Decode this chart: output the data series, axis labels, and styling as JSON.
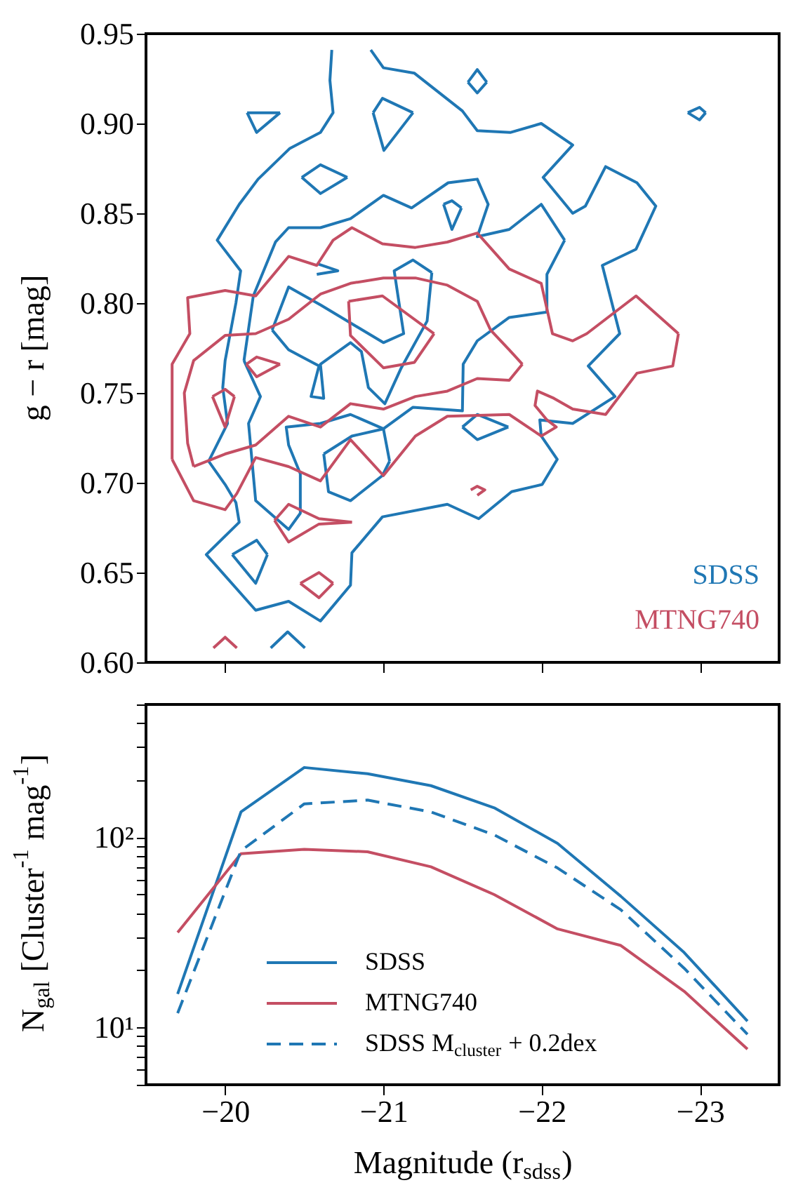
{
  "chart_data": [
    {
      "type": "line",
      "ylabel": "g − r [mag]",
      "xlim": [
        -19.5,
        -23.5
      ],
      "xticks": [
        -20,
        -21,
        -22,
        -23
      ],
      "ylim": [
        0.6,
        0.95
      ],
      "yticks": [
        {
          "value": 0.6,
          "label": "0.60"
        },
        {
          "value": 0.65,
          "label": "0.65"
        },
        {
          "value": 0.7,
          "label": "0.70"
        },
        {
          "value": 0.75,
          "label": "0.75"
        },
        {
          "value": 0.8,
          "label": "0.80"
        },
        {
          "value": 0.85,
          "label": "0.85"
        },
        {
          "value": 0.9,
          "label": "0.90"
        },
        {
          "value": 0.95,
          "label": "0.95"
        }
      ],
      "tick_labels": "y",
      "grid": false,
      "legend": "bottom right",
      "marker": "none",
      "series": [
        {
          "name": "SDSS",
          "color": "#1f77b4",
          "x": [
            -20.674,
            -20.662,
            -20.682,
            -20.602,
            -20.407,
            -20.208,
            -20.089,
            -19.95,
            -20.098,
            -20.068,
            -20.0,
            -19.985,
            -20.015,
            -19.896,
            -20.0,
            -20.068,
            -20.089,
            -19.881,
            -20.193,
            -20.401,
            -20.602,
            -20.792,
            -20.801,
            -20.994,
            -21.404,
            -21.602,
            -21.81,
            -22.003,
            -22.098,
            -21.997,
            -21.988,
            -22.196,
            -22.463,
            -22.294,
            -22.493,
            -22.383,
            -22.596,
            -22.721,
            -22.602,
            -22.404,
            -22.276,
            -22.196,
            -22.009,
            -22.196,
            -21.997,
            -21.801,
            -21.593,
            -21.499,
            -21.196,
            -21.0,
            -20.92
          ],
          "values": [
            0.941,
            0.924,
            0.906,
            0.895,
            0.886,
            0.869,
            0.855,
            0.835,
            0.818,
            0.8,
            0.768,
            0.753,
            0.733,
            0.712,
            0.699,
            0.689,
            0.678,
            0.66,
            0.629,
            0.634,
            0.623,
            0.643,
            0.661,
            0.681,
            0.688,
            0.68,
            0.695,
            0.699,
            0.713,
            0.726,
            0.735,
            0.733,
            0.748,
            0.765,
            0.783,
            0.821,
            0.83,
            0.854,
            0.867,
            0.876,
            0.854,
            0.85,
            0.87,
            0.888,
            0.9,
            0.895,
            0.896,
            0.907,
            0.928,
            0.931,
            0.941
          ]
        },
        {
          "color": "#1f77b4",
          "x": [
            -20.119,
            -20.178,
            -20.318,
            -20.401,
            -20.602,
            -20.792,
            -21.0,
            -21.178,
            -21.409,
            -21.593,
            -21.662,
            -21.593,
            -21.795,
            -21.997,
            -22.145
          ],
          "values": [
            0.768,
            0.804,
            0.834,
            0.842,
            0.842,
            0.847,
            0.86,
            0.853,
            0.867,
            0.869,
            0.855,
            0.837,
            0.841,
            0.855,
            0.835
          ]
        },
        {
          "color": "#1f77b4",
          "x": [
            -22.145,
            -22.033,
            -22.033,
            -21.795,
            -21.593,
            -21.504,
            -21.499,
            -21.187,
            -21.0,
            -20.792,
            -20.602,
            -20.386,
            -20.401,
            -20.475,
            -20.475,
            -20.401,
            -20.193,
            -20.148,
            -20.223,
            -20.119
          ],
          "values": [
            0.835,
            0.816,
            0.795,
            0.792,
            0.779,
            0.766,
            0.74,
            0.742,
            0.73,
            0.738,
            0.733,
            0.731,
            0.721,
            0.705,
            0.683,
            0.674,
            0.69,
            0.733,
            0.748,
            0.768
          ]
        },
        {
          "color": "#1f77b4",
          "x": [
            -20.297,
            -20.401,
            -20.602,
            -20.792,
            -21.0,
            -21.128,
            -21.068,
            -21.187,
            -21.306
          ],
          "values": [
            0.785,
            0.809,
            0.799,
            0.789,
            0.778,
            0.783,
            0.818,
            0.824,
            0.817
          ]
        },
        {
          "color": "#1f77b4",
          "x": [
            -21.306,
            -21.276,
            -21.113,
            -21.009,
            -20.905,
            -20.861,
            -20.792,
            -20.602,
            -20.623,
            -20.543,
            -20.593,
            -20.401,
            -20.297
          ],
          "values": [
            0.817,
            0.79,
            0.764,
            0.744,
            0.753,
            0.773,
            0.778,
            0.766,
            0.747,
            0.748,
            0.765,
            0.774,
            0.785
          ]
        },
        {
          "color": "#1f77b4",
          "x": [
            -20.623,
            -20.801,
            -21.0,
            -21.039
          ],
          "values": [
            0.716,
            0.726,
            0.73,
            0.712
          ]
        },
        {
          "color": "#1f77b4",
          "x": [
            -21.039,
            -20.994,
            -20.792,
            -20.653,
            -20.623
          ],
          "values": [
            0.712,
            0.704,
            0.69,
            0.695,
            0.716
          ]
        },
        {
          "color": "#1f77b4",
          "x": [
            -20.139,
            -20.347
          ],
          "values": [
            0.906,
            0.906
          ]
        },
        {
          "color": "#1f77b4",
          "x": [
            -20.347,
            -20.199,
            -20.139
          ],
          "values": [
            0.906,
            0.895,
            0.906
          ]
        },
        {
          "color": "#1f77b4",
          "x": [
            -20.935,
            -20.994,
            -21.187
          ],
          "values": [
            0.906,
            0.914,
            0.906
          ]
        },
        {
          "color": "#1f77b4",
          "x": [
            -21.187,
            -21.003,
            -20.935
          ],
          "values": [
            0.906,
            0.885,
            0.906
          ]
        },
        {
          "color": "#1f77b4",
          "x": [
            -20.484,
            -20.602,
            -20.772
          ],
          "values": [
            0.87,
            0.877,
            0.87
          ]
        },
        {
          "color": "#1f77b4",
          "x": [
            -20.772,
            -20.602,
            -20.484
          ],
          "values": [
            0.87,
            0.861,
            0.87
          ]
        },
        {
          "color": "#1f77b4",
          "x": [
            -21.534,
            -21.593,
            -21.653
          ],
          "values": [
            0.923,
            0.93,
            0.923
          ]
        },
        {
          "color": "#1f77b4",
          "x": [
            -21.653,
            -21.593,
            -21.534
          ],
          "values": [
            0.923,
            0.917,
            0.923
          ]
        },
        {
          "color": "#1f77b4",
          "x": [
            -22.923,
            -22.997,
            -23.036
          ],
          "values": [
            0.906,
            0.909,
            0.906
          ]
        },
        {
          "color": "#1f77b4",
          "x": [
            -23.036,
            -22.997,
            -22.923
          ],
          "values": [
            0.906,
            0.902,
            0.906
          ]
        },
        {
          "color": "#1f77b4",
          "x": [
            -20.045,
            -20.199,
            -20.267
          ],
          "values": [
            0.66,
            0.668,
            0.66
          ]
        },
        {
          "color": "#1f77b4",
          "x": [
            -20.267,
            -20.193,
            -20.045
          ],
          "values": [
            0.66,
            0.644,
            0.66
          ]
        },
        {
          "color": "#1f77b4",
          "x": [
            -21.499,
            -21.593,
            -21.789
          ],
          "values": [
            0.731,
            0.738,
            0.731
          ]
        },
        {
          "color": "#1f77b4",
          "x": [
            -21.789,
            -21.593,
            -21.499
          ],
          "values": [
            0.731,
            0.724,
            0.731
          ]
        },
        {
          "color": "#1f77b4",
          "x": [
            -21.38,
            -21.433,
            -21.493
          ],
          "values": [
            0.855,
            0.857,
            0.853
          ]
        },
        {
          "color": "#1f77b4",
          "x": [
            -21.493,
            -21.433,
            -21.38
          ],
          "values": [
            0.853,
            0.841,
            0.855
          ]
        },
        {
          "color": "#1f77b4",
          "x": [
            -20.579,
            -20.712,
            -20.579
          ],
          "values": [
            0.822,
            0.818,
            0.816
          ]
        },
        {
          "color": "#1f77b4",
          "x": [
            -20.288,
            -20.395,
            -20.504
          ],
          "values": [
            0.608,
            0.617,
            0.608
          ]
        },
        {
          "name": "MTNG740",
          "color": "#c44e63",
          "x": [
            -19.665,
            -19.665,
            -19.777,
            -19.763,
            -20.0,
            -20.193,
            -20.401,
            -20.579,
            -20.682,
            -20.801,
            -20.994,
            -21.202,
            -21.404,
            -21.593,
            -21.795,
            -21.997,
            -22.068,
            -22.196,
            -22.285,
            -22.596,
            -22.864
          ],
          "values": [
            0.713,
            0.766,
            0.783,
            0.803,
            0.807,
            0.804,
            0.826,
            0.821,
            0.835,
            0.842,
            0.833,
            0.831,
            0.834,
            0.839,
            0.819,
            0.811,
            0.783,
            0.779,
            0.783,
            0.804,
            0.783
          ]
        },
        {
          "color": "#c44e63",
          "x": [
            -22.864,
            -22.828,
            -22.602,
            -22.404,
            -22.196,
            -22.077,
            -21.973,
            -21.958,
            -22.033,
            -22.092,
            -21.997,
            -21.795,
            -21.404,
            -21.202,
            -21.0,
            -20.792,
            -20.602,
            -20.401,
            -20.193,
            -20.074,
            -20.0,
            -19.801,
            -19.665
          ],
          "values": [
            0.783,
            0.765,
            0.761,
            0.738,
            0.741,
            0.747,
            0.751,
            0.743,
            0.735,
            0.731,
            0.726,
            0.738,
            0.737,
            0.726,
            0.704,
            0.724,
            0.701,
            0.709,
            0.714,
            0.694,
            0.685,
            0.69,
            0.713
          ]
        },
        {
          "color": "#c44e63",
          "x": [
            -21.878,
            -21.795,
            -21.677,
            -21.593,
            -21.404,
            -21.202,
            -21.0,
            -20.792,
            -20.602,
            -20.401,
            -20.193,
            -20.0,
            -19.801,
            -19.742,
            -19.763,
            -19.801
          ],
          "values": [
            0.766,
            0.774,
            0.785,
            0.801,
            0.81,
            0.814,
            0.814,
            0.811,
            0.805,
            0.791,
            0.783,
            0.782,
            0.768,
            0.75,
            0.722,
            0.709
          ]
        },
        {
          "color": "#c44e63",
          "x": [
            -19.801,
            -20.0,
            -20.193,
            -20.401,
            -20.602,
            -20.792,
            -21.0,
            -21.202,
            -21.404,
            -21.593,
            -21.795,
            -21.878
          ],
          "values": [
            0.709,
            0.716,
            0.721,
            0.737,
            0.731,
            0.744,
            0.741,
            0.748,
            0.751,
            0.758,
            0.757,
            0.766
          ]
        },
        {
          "color": "#c44e63",
          "x": [
            -20.78,
            -20.994,
            -21.32
          ],
          "values": [
            0.801,
            0.804,
            0.783
          ]
        },
        {
          "color": "#c44e63",
          "x": [
            -21.32,
            -21.196,
            -21.0,
            -20.792,
            -20.78
          ],
          "values": [
            0.783,
            0.767,
            0.764,
            0.782,
            0.801
          ]
        },
        {
          "color": "#c44e63",
          "x": [
            -20.312,
            -20.401,
            -20.593,
            -20.801
          ],
          "values": [
            0.679,
            0.688,
            0.68,
            0.678
          ]
        },
        {
          "color": "#c44e63",
          "x": [
            -20.801,
            -20.593,
            -20.401,
            -20.312
          ],
          "values": [
            0.678,
            0.677,
            0.667,
            0.679
          ]
        },
        {
          "color": "#c44e63",
          "x": [
            -20.134,
            -20.199,
            -20.347
          ],
          "values": [
            0.766,
            0.77,
            0.766
          ]
        },
        {
          "color": "#c44e63",
          "x": [
            -20.347,
            -20.199,
            -20.134
          ],
          "values": [
            0.766,
            0.759,
            0.766
          ]
        },
        {
          "color": "#c44e63",
          "x": [
            -19.92,
            -20.0,
            -20.059
          ],
          "values": [
            0.748,
            0.752,
            0.748
          ]
        },
        {
          "color": "#c44e63",
          "x": [
            -20.059,
            -20.0,
            -19.92
          ],
          "values": [
            0.748,
            0.731,
            0.748
          ]
        },
        {
          "color": "#c44e63",
          "x": [
            -20.475,
            -20.593,
            -20.682
          ],
          "values": [
            0.644,
            0.65,
            0.644
          ]
        },
        {
          "color": "#c44e63",
          "x": [
            -20.682,
            -20.593,
            -20.475
          ],
          "values": [
            0.644,
            0.636,
            0.644
          ]
        },
        {
          "color": "#c44e63",
          "x": [
            -21.552,
            -21.593,
            -21.641,
            -21.593
          ],
          "values": [
            0.696,
            0.698,
            0.696,
            0.693
          ]
        },
        {
          "color": "#c44e63",
          "x": [
            -19.926,
            -20.0,
            -20.074
          ],
          "values": [
            0.608,
            0.614,
            0.608
          ]
        }
      ]
    },
    {
      "type": "line",
      "xlabel": "Magnitude (r$_{sdss}$)",
      "ylabel": "N$_{gal}$ [Cluster$^{-1}$ mag$^{-1}$]",
      "x": [
        -19.7,
        -20.1,
        -20.5,
        -20.9,
        -21.3,
        -21.7,
        -22.1,
        -22.5,
        -22.9,
        -23.3
      ],
      "xlim": [
        -19.5,
        -23.5
      ],
      "xticks": [
        {
          "value": -20,
          "label": "−20"
        },
        {
          "value": -21,
          "label": "−21"
        },
        {
          "value": -22,
          "label": "−22"
        },
        {
          "value": -23,
          "label": "−23"
        }
      ],
      "ylim": [
        5,
        500
      ],
      "yticks": [
        {
          "value": 5,
          "label": null
        },
        {
          "value": 6,
          "label": null
        },
        {
          "value": 7,
          "label": null
        },
        {
          "value": 8,
          "label": null
        },
        {
          "value": 9,
          "label": null
        },
        {
          "value": 10,
          "label": "10¹"
        },
        {
          "value": 20,
          "label": null
        },
        {
          "value": 30,
          "label": null
        },
        {
          "value": 40,
          "label": null
        },
        {
          "value": 50,
          "label": null
        },
        {
          "value": 60,
          "label": null
        },
        {
          "value": 70,
          "label": null
        },
        {
          "value": 80,
          "label": null
        },
        {
          "value": 90,
          "label": null
        },
        {
          "value": 100,
          "label": "10²"
        },
        {
          "value": 200,
          "label": null
        },
        {
          "value": 300,
          "label": null
        },
        {
          "value": 400,
          "label": null
        },
        {
          "value": 500,
          "label": null
        }
      ],
      "log": "y",
      "grid": false,
      "legend": "bottom",
      "marker": "none",
      "series": [
        {
          "name": "SDSS",
          "color": "#1f77b4",
          "line_style": "solid",
          "values": [
            15.0,
            136,
            233,
            216,
            187,
            143,
            93,
            49,
            24.8,
            10.8
          ]
        },
        {
          "name": "MTNG740",
          "color": "#c44e63",
          "line_style": "solid",
          "values": [
            31.6,
            82,
            86.5,
            84,
            70,
            50,
            33,
            27,
            15.5,
            7.7
          ]
        },
        {
          "name": "SDSS M$_{cluster}$ + 0.2dex",
          "color": "#1f77b4",
          "line_style": "dashed",
          "values": [
            11.9,
            85,
            150,
            157,
            136,
            103,
            69,
            41.6,
            20.5,
            9.2
          ]
        }
      ]
    }
  ]
}
